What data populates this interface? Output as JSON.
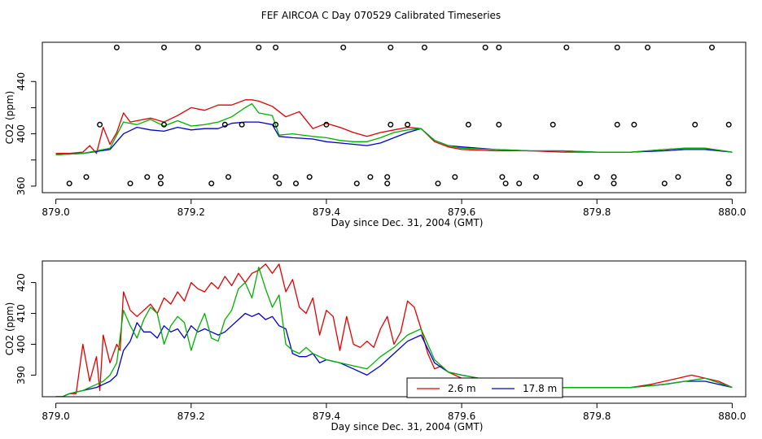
{
  "figure": {
    "title": "FEF AIRCOA C  Day 070529  Calibrated Timeseries"
  },
  "chart_data": [
    {
      "type": "line",
      "xlabel": "Day since Dec. 31, 2004 (GMT)",
      "ylabel": "CO2 (ppm)",
      "xlim": [
        878.98,
        880.02
      ],
      "ylim": [
        355,
        470
      ],
      "xticks": [
        879.0,
        879.2,
        879.4,
        879.6,
        879.8,
        880.0
      ],
      "xtick_labels": [
        "879.0",
        "879.2",
        "879.4",
        "879.6",
        "879.8",
        "880.0"
      ],
      "yticks": [
        360,
        380,
        400,
        420,
        440
      ],
      "ytick_labels": [
        "360",
        "",
        "400",
        "",
        "440"
      ],
      "series": [
        {
          "name": "2.6 m",
          "color": "#e00000",
          "x": [
            879.0,
            879.02,
            879.04,
            879.05,
            879.06,
            879.07,
            879.08,
            879.09,
            879.1,
            879.11,
            879.12,
            879.14,
            879.16,
            879.18,
            879.2,
            879.22,
            879.24,
            879.26,
            879.28,
            879.29,
            879.3,
            879.32,
            879.34,
            879.36,
            879.38,
            879.4,
            879.42,
            879.44,
            879.46,
            879.48,
            879.5,
            879.52,
            879.54,
            879.56,
            879.58,
            879.6,
            879.65,
            879.7,
            879.75,
            879.8,
            879.85,
            879.9,
            879.93,
            879.96,
            880.0
          ],
          "y": [
            385,
            385,
            386,
            391,
            385,
            405,
            392,
            401,
            416,
            409,
            410,
            412,
            409,
            414,
            420,
            418,
            422,
            422,
            426,
            426,
            425,
            421,
            413,
            417,
            404,
            408,
            405,
            401,
            398,
            401,
            403,
            405,
            404,
            394,
            390,
            388,
            387,
            387,
            386,
            386,
            386,
            388,
            389,
            389,
            386
          ]
        },
        {
          "name": "17.8 m",
          "color": "#0000c8",
          "x": [
            879.0,
            879.04,
            879.08,
            879.1,
            879.12,
            879.14,
            879.16,
            879.18,
            879.2,
            879.22,
            879.24,
            879.26,
            879.28,
            879.3,
            879.32,
            879.33,
            879.35,
            879.38,
            879.4,
            879.42,
            879.44,
            879.46,
            879.48,
            879.5,
            879.52,
            879.54,
            879.56,
            879.58,
            879.6,
            879.65,
            879.7,
            879.75,
            879.8,
            879.85,
            879.9,
            879.93,
            879.96,
            880.0
          ],
          "y": [
            384,
            385,
            388,
            400,
            405,
            403,
            402,
            405,
            403,
            404,
            404,
            408,
            409,
            409,
            407,
            398,
            397,
            396,
            394,
            393,
            392,
            391,
            393,
            397,
            401,
            404,
            395,
            391,
            390,
            388,
            387,
            387,
            386,
            386,
            387,
            388,
            388,
            386
          ]
        },
        {
          "name": "green",
          "color": "#00b000",
          "x": [
            879.0,
            879.04,
            879.08,
            879.1,
            879.12,
            879.14,
            879.16,
            879.18,
            879.2,
            879.22,
            879.24,
            879.26,
            879.28,
            879.29,
            879.3,
            879.32,
            879.33,
            879.35,
            879.38,
            879.4,
            879.42,
            879.44,
            879.46,
            879.48,
            879.5,
            879.52,
            879.54,
            879.56,
            879.58,
            879.6,
            879.65,
            879.7,
            879.75,
            879.8,
            879.85,
            879.9,
            879.93,
            879.96,
            880.0
          ],
          "y": [
            384,
            385,
            389,
            409,
            407,
            411,
            406,
            410,
            406,
            407,
            409,
            413,
            420,
            423,
            416,
            414,
            399,
            400,
            398,
            397,
            395,
            394,
            394,
            397,
            401,
            403,
            404,
            395,
            391,
            389,
            388,
            387,
            387,
            386,
            386,
            388,
            389,
            389,
            386
          ]
        }
      ],
      "markers": {
        "symbol": "open-circle",
        "x": [
          879.09,
          879.16,
          879.21,
          879.3,
          879.325,
          879.425,
          879.495,
          879.545,
          879.635,
          879.655,
          879.755,
          879.83,
          879.875,
          879.97,
          879.065,
          879.16,
          879.25,
          879.275,
          879.325,
          879.4,
          879.495,
          879.52,
          879.61,
          879.655,
          879.735,
          879.83,
          879.855,
          879.945,
          879.995,
          879.045,
          879.135,
          879.155,
          879.255,
          879.325,
          879.375,
          879.465,
          879.49,
          879.59,
          879.66,
          879.71,
          879.8,
          879.825,
          879.92,
          879.995,
          879.02,
          879.11,
          879.155,
          879.23,
          879.33,
          879.355,
          879.445,
          879.49,
          879.565,
          879.665,
          879.685,
          879.775,
          879.825,
          879.9,
          879.995
        ],
        "y": [
          466,
          466,
          466,
          466,
          466,
          466,
          466,
          466,
          466,
          466,
          466,
          466,
          466,
          466,
          407,
          407,
          407,
          407,
          407,
          407,
          407,
          407,
          407,
          407,
          407,
          407,
          407,
          407,
          407,
          367,
          367,
          367,
          367,
          367,
          367,
          367,
          367,
          367,
          367,
          367,
          367,
          367,
          367,
          367,
          362,
          362,
          362,
          362,
          362,
          362,
          362,
          362,
          362,
          362,
          362,
          362,
          362,
          362,
          362
        ]
      }
    },
    {
      "type": "line",
      "xlabel": "Day since Dec. 31, 2004 (GMT)",
      "ylabel": "CO2 (ppm)",
      "xlim": [
        878.98,
        880.02
      ],
      "ylim": [
        383,
        427
      ],
      "xticks": [
        879.0,
        879.2,
        879.4,
        879.6,
        879.8,
        880.0
      ],
      "xtick_labels": [
        "879.0",
        "879.2",
        "879.4",
        "879.6",
        "879.8",
        "880.0"
      ],
      "yticks": [
        390,
        400,
        410,
        420
      ],
      "ytick_labels": [
        "390",
        "400",
        "410",
        "420"
      ],
      "series": [
        {
          "name": "2.6 m",
          "color": "#e00000",
          "x": [
            879.0,
            879.01,
            879.02,
            879.03,
            879.04,
            879.05,
            879.06,
            879.065,
            879.07,
            879.08,
            879.09,
            879.095,
            879.1,
            879.11,
            879.12,
            879.13,
            879.14,
            879.15,
            879.16,
            879.17,
            879.18,
            879.19,
            879.2,
            879.21,
            879.22,
            879.23,
            879.24,
            879.25,
            879.26,
            879.27,
            879.28,
            879.29,
            879.3,
            879.31,
            879.32,
            879.33,
            879.34,
            879.35,
            879.36,
            879.37,
            879.38,
            879.39,
            879.4,
            879.41,
            879.42,
            879.43,
            879.44,
            879.45,
            879.46,
            879.47,
            879.48,
            879.49,
            879.5,
            879.51,
            879.52,
            879.53,
            879.54,
            879.55,
            879.56,
            879.57,
            879.58,
            879.6,
            879.62,
            879.65,
            879.7,
            879.75,
            879.8,
            879.85,
            879.88,
            879.9,
            879.92,
            879.94,
            879.96,
            879.98,
            880.0
          ],
          "y": [
            383,
            383,
            384,
            384,
            400,
            388,
            396,
            385,
            403,
            394,
            400,
            398,
            417,
            411,
            409,
            411,
            413,
            410,
            415,
            413,
            417,
            414,
            420,
            418,
            417,
            420,
            418,
            422,
            419,
            423,
            420,
            423,
            424,
            426,
            423,
            426,
            417,
            421,
            412,
            410,
            415,
            403,
            411,
            409,
            398,
            409,
            400,
            399,
            401,
            399,
            405,
            409,
            400,
            404,
            414,
            412,
            405,
            397,
            392,
            393,
            391,
            389,
            388,
            387,
            386,
            386,
            386,
            386,
            387,
            388,
            389,
            390,
            389,
            388,
            386
          ]
        },
        {
          "name": "17.8 m",
          "color": "#0000c8",
          "x": [
            879.0,
            879.01,
            879.02,
            879.04,
            879.06,
            879.07,
            879.08,
            879.09,
            879.1,
            879.11,
            879.12,
            879.13,
            879.14,
            879.15,
            879.16,
            879.17,
            879.18,
            879.19,
            879.2,
            879.21,
            879.22,
            879.23,
            879.24,
            879.25,
            879.26,
            879.27,
            879.28,
            879.29,
            879.3,
            879.31,
            879.32,
            879.33,
            879.34,
            879.35,
            879.36,
            879.37,
            879.38,
            879.39,
            879.4,
            879.42,
            879.44,
            879.46,
            879.48,
            879.5,
            879.52,
            879.54,
            879.56,
            879.58,
            879.6,
            879.65,
            879.7,
            879.75,
            879.8,
            879.85,
            879.9,
            879.93,
            879.96,
            880.0
          ],
          "y": [
            383,
            383,
            384,
            385,
            386,
            387,
            388,
            390,
            398,
            401,
            407,
            404,
            404,
            402,
            406,
            404,
            405,
            402,
            406,
            404,
            405,
            404,
            403,
            404,
            406,
            408,
            410,
            409,
            410,
            408,
            409,
            406,
            405,
            397,
            396,
            396,
            397,
            394,
            395,
            394,
            392,
            390,
            393,
            397,
            401,
            403,
            394,
            391,
            390,
            388,
            387,
            386,
            386,
            386,
            387,
            388,
            388,
            386
          ]
        },
        {
          "name": "green",
          "color": "#00b000",
          "x": [
            879.0,
            879.01,
            879.02,
            879.04,
            879.06,
            879.07,
            879.08,
            879.09,
            879.1,
            879.11,
            879.12,
            879.13,
            879.14,
            879.15,
            879.16,
            879.17,
            879.18,
            879.19,
            879.2,
            879.21,
            879.22,
            879.23,
            879.24,
            879.25,
            879.26,
            879.27,
            879.28,
            879.29,
            879.3,
            879.31,
            879.32,
            879.33,
            879.34,
            879.35,
            879.36,
            879.37,
            879.38,
            879.39,
            879.4,
            879.42,
            879.44,
            879.46,
            879.48,
            879.5,
            879.52,
            879.54,
            879.56,
            879.58,
            879.6,
            879.65,
            879.7,
            879.75,
            879.8,
            879.85,
            879.9,
            879.93,
            879.96,
            880.0
          ],
          "y": [
            383,
            383,
            384,
            385,
            387,
            388,
            390,
            394,
            411,
            406,
            402,
            408,
            412,
            410,
            400,
            406,
            409,
            407,
            398,
            405,
            410,
            402,
            401,
            408,
            411,
            418,
            420,
            415,
            425,
            418,
            412,
            416,
            400,
            398,
            397,
            399,
            397,
            396,
            395,
            394,
            393,
            392,
            396,
            399,
            403,
            405,
            395,
            391,
            390,
            388,
            387,
            386,
            386,
            386,
            387,
            388,
            389,
            386
          ]
        }
      ],
      "legend": {
        "placement": "lower-center",
        "entries": [
          {
            "label": "2.6 m",
            "color": "#e00000"
          },
          {
            "label": "17.8 m",
            "color": "#0000c8"
          }
        ]
      }
    }
  ]
}
